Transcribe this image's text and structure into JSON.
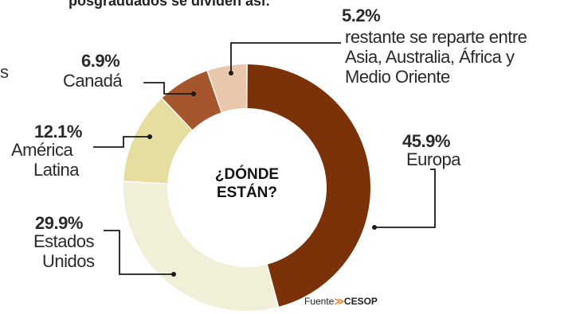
{
  "header": {
    "title_fragment": "posgraduados se dividen así:",
    "left_fragment": "s"
  },
  "chart_data": {
    "type": "pie",
    "center_label": [
      "¿DÓNDE",
      "ESTÁN?"
    ],
    "slices": [
      {
        "value": 45.9,
        "percent_label": "45.9%",
        "label_lines": [
          "Europa"
        ],
        "color": "#7b3208"
      },
      {
        "value": 29.9,
        "percent_label": "29.9%",
        "label_lines": [
          "Estados",
          "Unidos"
        ],
        "color": "#f2efd8"
      },
      {
        "value": 12.1,
        "percent_label": "12.1%",
        "label_lines": [
          "América",
          "Latina"
        ],
        "color": "#e6dea0"
      },
      {
        "value": 6.9,
        "percent_label": "6.9%",
        "label_lines": [
          "Canadá"
        ],
        "color": "#a5562c"
      },
      {
        "value": 5.2,
        "percent_label": "5.2%",
        "label_lines": [
          "restante se reparte entre",
          "Asia, Australia, África y",
          "Medio Oriente"
        ],
        "color": "#e8c7ad"
      }
    ]
  },
  "source": {
    "prefix": "Fuente",
    "arrow": "≫",
    "name": "CESOP"
  }
}
